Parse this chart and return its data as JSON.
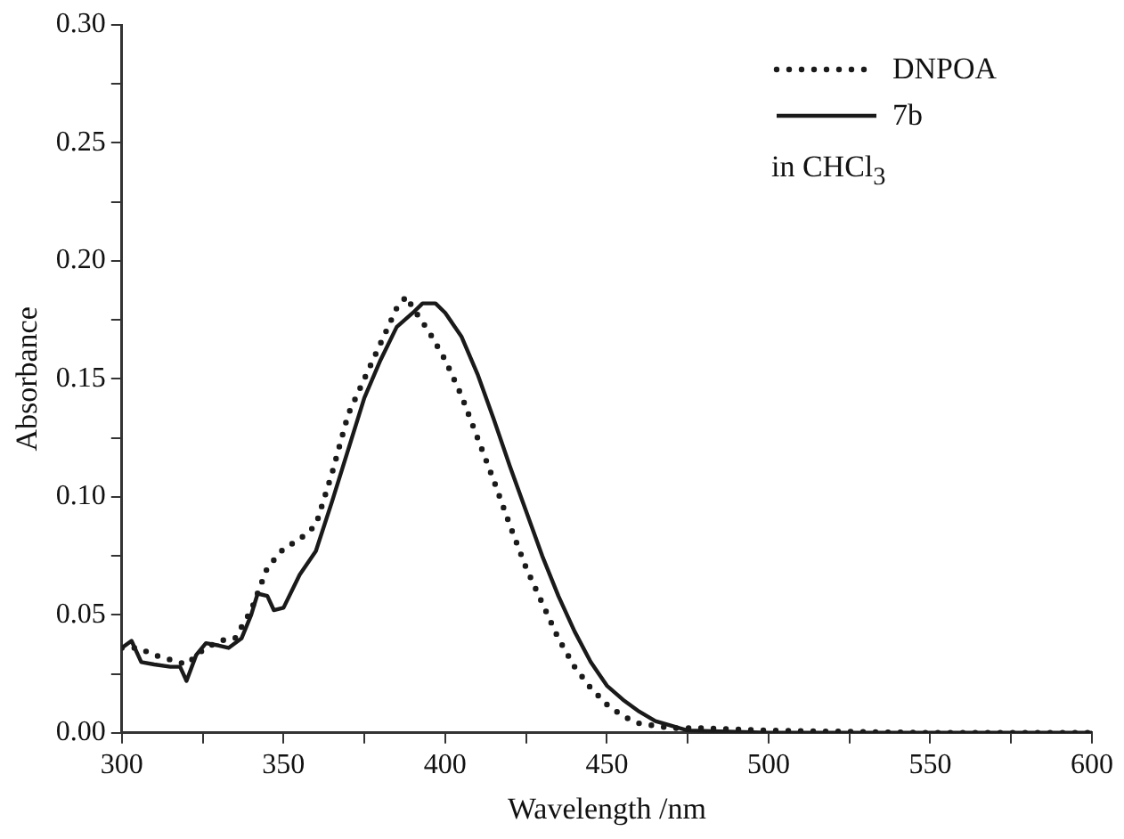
{
  "chart_data": {
    "type": "line",
    "xlabel": "Wavelength /nm",
    "ylabel": "Absorbance",
    "xlim": [
      300,
      600
    ],
    "xticks": [
      300,
      {
        "value": 325,
        "label": null
      },
      350,
      {
        "value": 375,
        "label": null
      },
      400,
      {
        "value": 425,
        "label": null
      },
      450,
      {
        "value": 475,
        "label": null
      },
      500,
      {
        "value": 525,
        "label": null
      },
      550,
      {
        "value": 575,
        "label": null
      },
      600
    ],
    "ylim": [
      0,
      0.3
    ],
    "yticks": [
      {
        "value": 0,
        "label": "0.00"
      },
      {
        "value": 0.025,
        "label": null
      },
      0.05,
      {
        "value": 0.075,
        "label": null
      },
      {
        "value": 0.1,
        "label": "0.10"
      },
      {
        "value": 0.125,
        "label": null
      },
      0.15,
      {
        "value": 0.175,
        "label": null
      },
      {
        "value": 0.2,
        "label": "0.20"
      },
      {
        "value": 0.225,
        "label": null
      },
      0.25,
      {
        "value": 0.275,
        "label": null
      },
      {
        "value": 0.3,
        "label": "0.30"
      }
    ],
    "grid": false,
    "legend": "top right",
    "marker": "none",
    "annotations": [
      "in CHCl$_{3}$"
    ],
    "series": [
      {
        "name": "DNPOA",
        "color": "#1a1a1a",
        "line_style": "dotted",
        "x": [
          300,
          305,
          310,
          315,
          320,
          325,
          330,
          335,
          340,
          345,
          350,
          355,
          360,
          365,
          370,
          375,
          380,
          385,
          388,
          390,
          395,
          400,
          405,
          410,
          415,
          420,
          425,
          430,
          435,
          440,
          445,
          450,
          455,
          460,
          470,
          480,
          500,
          550,
          600
        ],
        "values": [
          0.036,
          0.036,
          0.033,
          0.031,
          0.029,
          0.035,
          0.039,
          0.04,
          0.052,
          0.07,
          0.078,
          0.082,
          0.088,
          0.11,
          0.135,
          0.15,
          0.165,
          0.18,
          0.185,
          0.18,
          0.17,
          0.158,
          0.143,
          0.125,
          0.107,
          0.088,
          0.07,
          0.055,
          0.04,
          0.028,
          0.019,
          0.012,
          0.007,
          0.004,
          0.002,
          0.002,
          0.001,
          0,
          0
        ]
      },
      {
        "name": "7b",
        "color": "#1a1a1a",
        "line_style": "solid",
        "x": [
          300,
          303,
          306,
          310,
          315,
          318,
          320,
          323,
          326,
          330,
          333,
          337,
          340,
          342,
          345,
          347,
          350,
          355,
          360,
          365,
          370,
          375,
          380,
          385,
          390,
          393,
          397,
          400,
          405,
          410,
          415,
          420,
          425,
          430,
          435,
          440,
          445,
          450,
          455,
          460,
          465,
          470,
          475,
          500,
          600
        ],
        "values": [
          0.036,
          0.039,
          0.03,
          0.029,
          0.028,
          0.028,
          0.022,
          0.033,
          0.038,
          0.037,
          0.036,
          0.04,
          0.05,
          0.059,
          0.058,
          0.052,
          0.053,
          0.067,
          0.077,
          0.098,
          0.12,
          0.142,
          0.158,
          0.172,
          0.178,
          0.182,
          0.182,
          0.178,
          0.168,
          0.152,
          0.133,
          0.113,
          0.094,
          0.075,
          0.058,
          0.043,
          0.03,
          0.02,
          0.014,
          0.009,
          0.005,
          0.003,
          0.001,
          0,
          0
        ]
      }
    ]
  }
}
